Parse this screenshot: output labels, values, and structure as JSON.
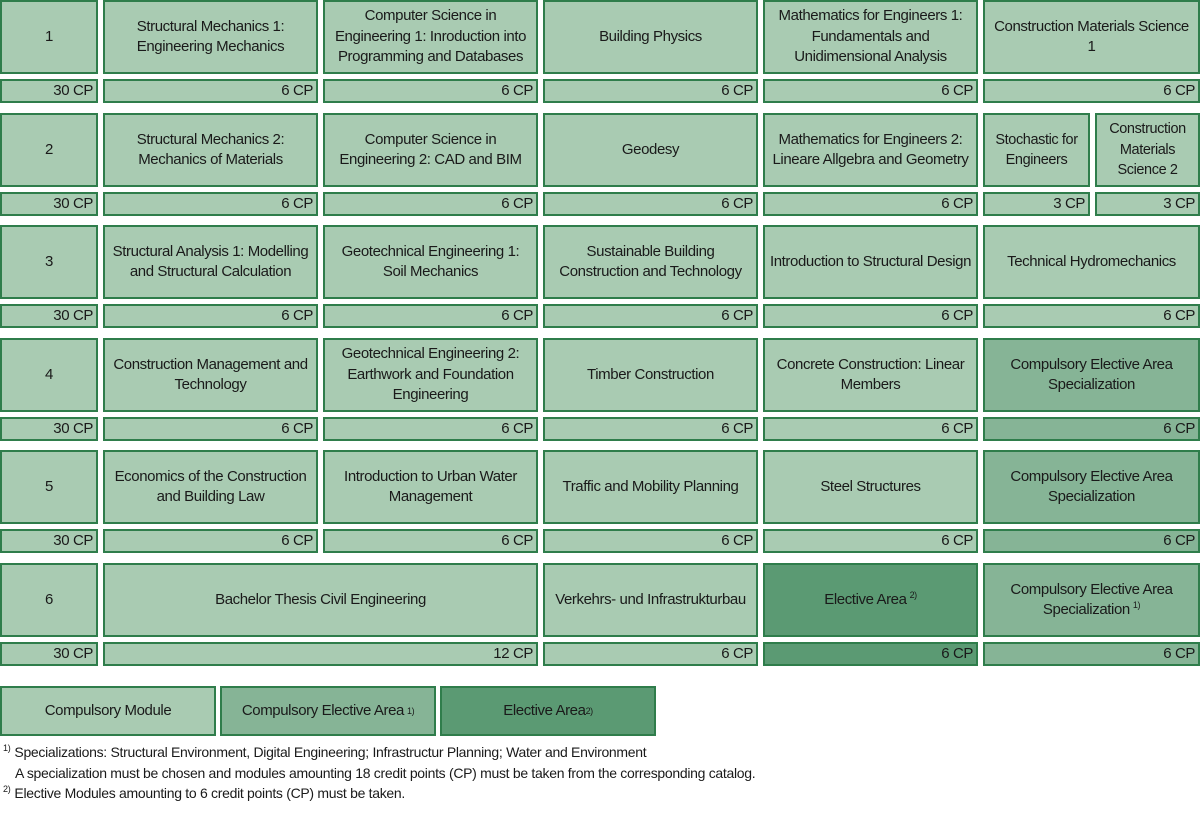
{
  "semesters": [
    {
      "label": "1",
      "cp": "30 CP",
      "modules": [
        {
          "title": "Structural Mechanics 1: Engineering Mechanics",
          "cp": "6 CP",
          "type": "compulsory",
          "col": 1,
          "span": 1
        },
        {
          "title": "Computer Science in Engineering 1: Inroduction into Programming and Databases",
          "cp": "6 CP",
          "type": "compulsory",
          "col": 2,
          "span": 1
        },
        {
          "title": "Building Physics",
          "cp": "6 CP",
          "type": "compulsory",
          "col": 3,
          "span": 1
        },
        {
          "title": "Mathematics for Engineers 1: Fundamentals and Unidimensional Analysis",
          "cp": "6 CP",
          "type": "compulsory",
          "col": 4,
          "span": 1
        },
        {
          "title": "Construction Materials Science 1",
          "cp": "6 CP",
          "type": "compulsory",
          "col": 5,
          "span": 1
        }
      ]
    },
    {
      "label": "2",
      "cp": "30 CP",
      "modules": [
        {
          "title": "Structural Mechanics 2: Mechanics of Materials",
          "cp": "6 CP",
          "type": "compulsory",
          "col": 1,
          "span": 1
        },
        {
          "title": "Computer Science in Engineering 2: CAD and BIM",
          "cp": "6 CP",
          "type": "compulsory",
          "col": 2,
          "span": 1
        },
        {
          "title": "Geodesy",
          "cp": "6 CP",
          "type": "compulsory",
          "col": 3,
          "span": 1
        },
        {
          "title": "Mathematics for Engineers 2: Lineare Allgebra and Geometry",
          "cp": "6 CP",
          "type": "compulsory",
          "col": 4,
          "span": 1
        },
        {
          "title": "Stochastic for Engineers",
          "cp": "3 CP",
          "type": "compulsory",
          "col": 5,
          "half": 1
        },
        {
          "title": "Construction Materials Science 2",
          "cp": "3 CP",
          "type": "compulsory",
          "col": 5,
          "half": 2
        }
      ]
    },
    {
      "label": "3",
      "cp": "30 CP",
      "modules": [
        {
          "title": "Structural Analysis 1: Modelling and Structural Calculation",
          "cp": "6 CP",
          "type": "compulsory",
          "col": 1,
          "span": 1
        },
        {
          "title": "Geotechnical Engineering 1: Soil Mechanics",
          "cp": "6 CP",
          "type": "compulsory",
          "col": 2,
          "span": 1
        },
        {
          "title": "Sustainable Building Construction and Technology",
          "cp": "6 CP",
          "type": "compulsory",
          "col": 3,
          "span": 1
        },
        {
          "title": "Introduction to Structural Design",
          "cp": "6 CP",
          "type": "compulsory",
          "col": 4,
          "span": 1
        },
        {
          "title": "Technical Hydromechanics",
          "cp": "6 CP",
          "type": "compulsory",
          "col": 5,
          "span": 1
        }
      ]
    },
    {
      "label": "4",
      "cp": "30 CP",
      "modules": [
        {
          "title": "Construction Management and Technology",
          "cp": "6 CP",
          "type": "compulsory",
          "col": 1,
          "span": 1
        },
        {
          "title": "Geotechnical Engineering 2: Earthwork and Foundation Engineering",
          "cp": "6 CP",
          "type": "compulsory",
          "col": 2,
          "span": 1
        },
        {
          "title": "Timber Construction",
          "cp": "6 CP",
          "type": "compulsory",
          "col": 3,
          "span": 1
        },
        {
          "title": "Concrete Construction: Linear Members",
          "cp": "6 CP",
          "type": "compulsory",
          "col": 4,
          "span": 1
        },
        {
          "title": "Compulsory Elective Area Specialization",
          "cp": "6 CP",
          "type": "celective",
          "col": 5,
          "span": 1
        }
      ]
    },
    {
      "label": "5",
      "cp": "30 CP",
      "modules": [
        {
          "title": "Economics of the Construction and Building Law",
          "cp": "6 CP",
          "type": "compulsory",
          "col": 1,
          "span": 1
        },
        {
          "title": "Introduction to Urban Water Management",
          "cp": "6 CP",
          "type": "compulsory",
          "col": 2,
          "span": 1
        },
        {
          "title": "Traffic and Mobility Planning",
          "cp": "6 CP",
          "type": "compulsory",
          "col": 3,
          "span": 1
        },
        {
          "title": "Steel Structures",
          "cp": "6 CP",
          "type": "compulsory",
          "col": 4,
          "span": 1
        },
        {
          "title": "Compulsory Elective Area Specialization",
          "cp": "6 CP",
          "type": "celective",
          "col": 5,
          "span": 1
        }
      ]
    },
    {
      "label": "6",
      "cp": "30 CP",
      "modules": [
        {
          "title": "Bachelor Thesis Civil Engineering",
          "cp": "12 CP",
          "type": "compulsory",
          "col": 1,
          "span": 2
        },
        {
          "title": "Verkehrs- und Infrastrukturbau",
          "cp": "6 CP",
          "type": "compulsory",
          "col": 3,
          "span": 1
        },
        {
          "title": "Elective Area",
          "sup": "2)",
          "cp": "6 CP",
          "type": "elective",
          "col": 4,
          "span": 1
        },
        {
          "title": "Compulsory Elective Area Specialization",
          "sup": "1)",
          "cp": "6 CP",
          "type": "celective",
          "col": 5,
          "span": 1
        }
      ]
    }
  ],
  "legend": [
    {
      "label": "Compulsory Module",
      "type": "compulsory"
    },
    {
      "label": "Compulsory Elective Area",
      "sup": "1)",
      "type": "celective"
    },
    {
      "label": "Elective Area",
      "sup": "2)",
      "type": "elective"
    }
  ],
  "footnotes": {
    "n1_mark": "1)",
    "n1_line1": "Specializations: Structural Environment, Digital Engineering; Infrastructur Planning; Water and Environment",
    "n1_line2": "A specialization must be chosen and modules amounting 18 credit points (CP) must be taken from the corresponding catalog.",
    "n2_mark": "2)",
    "n2_line1": "Elective Modules amounting to 6 credit points (CP) must be taken."
  },
  "colors": {
    "compulsory": "#a9cbb2",
    "celective": "#86b496",
    "elective": "#5b9a73",
    "border": "#2f7d4b"
  }
}
